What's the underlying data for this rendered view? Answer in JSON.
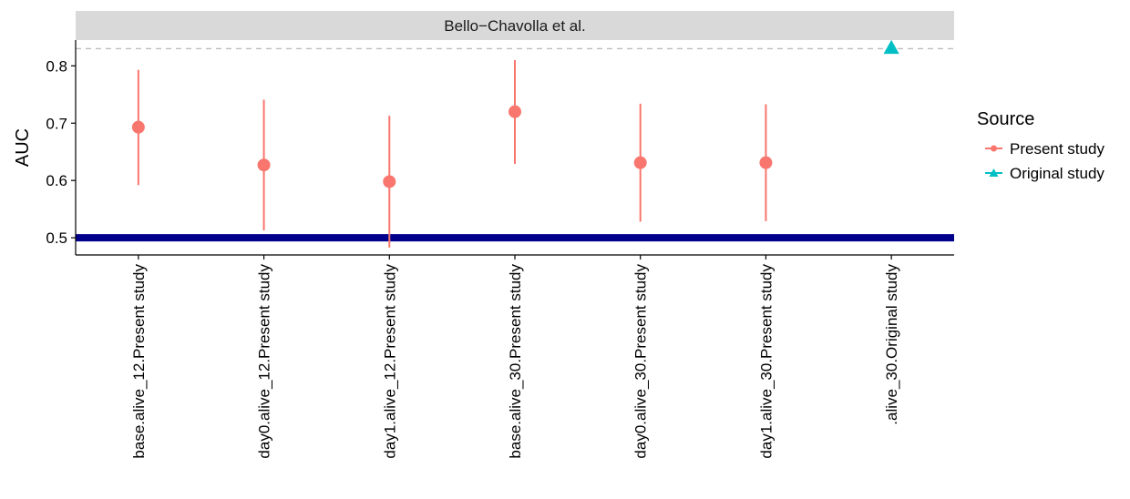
{
  "chart_data": {
    "type": "scatter",
    "title": "",
    "facet_label": "Bello−Chavolla et al.",
    "xlabel": "",
    "ylabel": "AUC",
    "ylim": [
      0.47,
      0.845
    ],
    "yticks": [
      0.5,
      0.6,
      0.7,
      0.8
    ],
    "ytick_labels": [
      "0.5",
      "0.6",
      "0.7",
      "0.8"
    ],
    "categories": [
      "base.alive_12.Present study",
      "day0.alive_12.Present study",
      "day1.alive_12.Present study",
      "base.alive_30.Present study",
      "day0.alive_30.Present study",
      "day1.alive_30.Present study",
      ".alive_30.Original study"
    ],
    "series": [
      {
        "name": "Present study",
        "color": "#F8766D",
        "marker": "circle",
        "points": [
          {
            "category": "base.alive_12.Present study",
            "y": 0.693,
            "lo": 0.592,
            "hi": 0.793
          },
          {
            "category": "day0.alive_12.Present study",
            "y": 0.627,
            "lo": 0.513,
            "hi": 0.741
          },
          {
            "category": "day1.alive_12.Present study",
            "y": 0.598,
            "lo": 0.483,
            "hi": 0.713
          },
          {
            "category": "base.alive_30.Present study",
            "y": 0.72,
            "lo": 0.629,
            "hi": 0.81
          },
          {
            "category": "day0.alive_30.Present study",
            "y": 0.631,
            "lo": 0.528,
            "hi": 0.734
          },
          {
            "category": "day1.alive_30.Present study",
            "y": 0.631,
            "lo": 0.529,
            "hi": 0.733
          }
        ]
      },
      {
        "name": "Original study",
        "color": "#00BFC4",
        "marker": "triangle",
        "points": [
          {
            "category": ".alive_30.Original study",
            "y": 0.831
          }
        ]
      }
    ],
    "reference_lines": [
      {
        "y": 0.5,
        "style": "solid",
        "color": "#00008B"
      },
      {
        "y": 0.83,
        "style": "dashed",
        "color": "#BEBEBE"
      }
    ],
    "grid": false,
    "legend": {
      "title": "Source",
      "position": "right",
      "entries": [
        "Present study",
        "Original study"
      ]
    }
  }
}
